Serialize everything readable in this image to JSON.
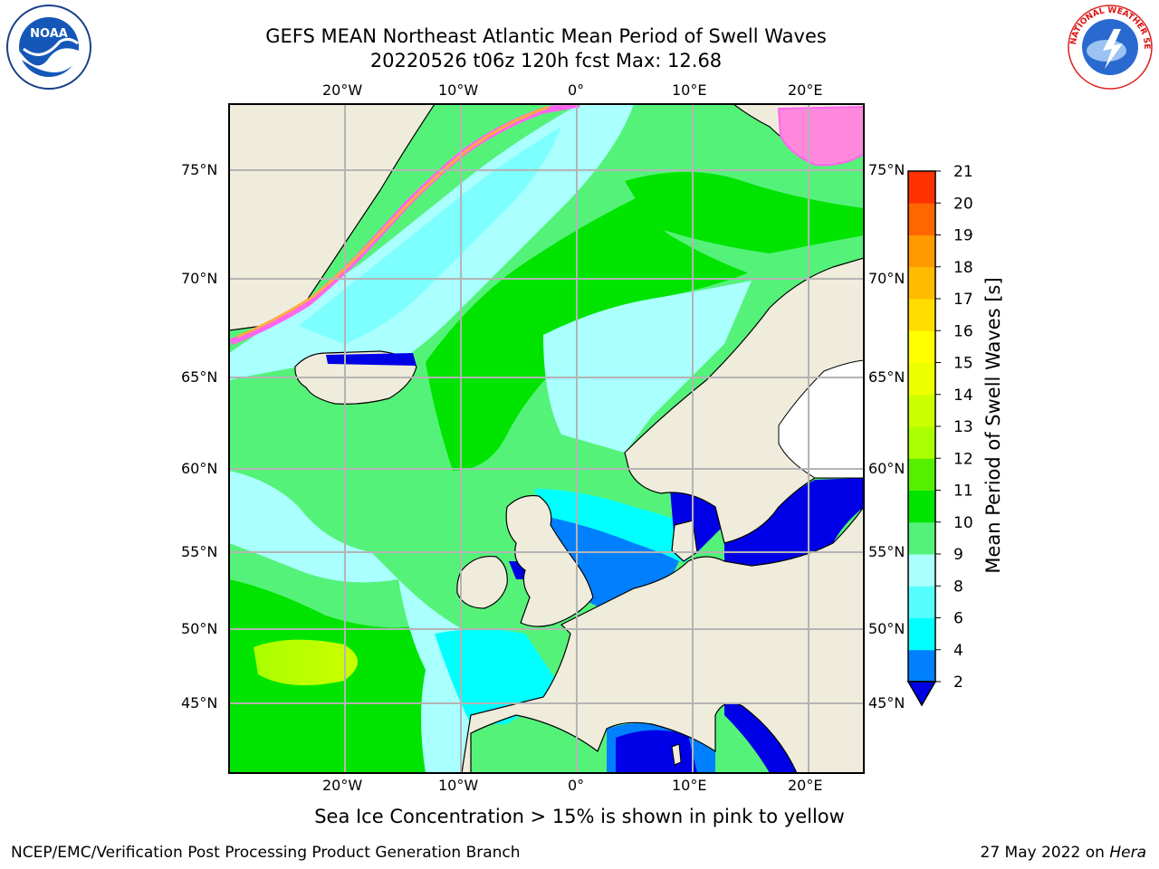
{
  "header": {
    "title_line1": "GEFS MEAN Northeast Atlantic Mean Period of Swell Waves",
    "title_line2": "20220526 t06z 120h fcst   Max: 12.68"
  },
  "map": {
    "lon_labels": [
      "20°W",
      "10°W",
      "0°",
      "10°E",
      "20°E"
    ],
    "lat_labels": [
      "75°N",
      "70°N",
      "65°N",
      "60°N",
      "55°N",
      "50°N",
      "45°N"
    ],
    "colors": {
      "ocean_dark_blue": "#0000e6",
      "ocean_blue": "#0080ff",
      "ocean_cyan": "#00ffff",
      "ocean_light_cyan": "#7dffff",
      "ocean_pale_cyan": "#aaffff",
      "ocean_light_green": "#55f27a",
      "ocean_green": "#00e400",
      "ocean_lime": "#aaff00",
      "land": "#efecdc",
      "ice_pink": "#ff66ee",
      "ice_orange": "#ffaa44",
      "grid": "#b4b4b4"
    }
  },
  "colorbar": {
    "label": "Mean Period of Swell Waves [s]",
    "ticks": [
      "2",
      "4",
      "6",
      "8",
      "9",
      "10",
      "11",
      "12",
      "13",
      "14",
      "15",
      "16",
      "17",
      "18",
      "19",
      "20",
      "21"
    ],
    "colors": [
      "#0080ff",
      "#00ffff",
      "#55ffff",
      "#aaffff",
      "#55f27a",
      "#00e400",
      "#55f000",
      "#aaff00",
      "#ccff00",
      "#eeff00",
      "#ffff00",
      "#ffdd00",
      "#ffbb00",
      "#ff9900",
      "#ff6600",
      "#ff3300"
    ],
    "under_color": "#0000e6"
  },
  "caption": "Sea Ice Concentration > 15% is shown in pink to yellow",
  "footer": {
    "left": "NCEP/EMC/Verification Post Processing Product Generation Branch",
    "right_date": "27 May 2022 on ",
    "right_host": "Hera"
  },
  "logos": {
    "noaa_text": "NOAA",
    "nws_text": "NATIONAL WEATHER SERVICE"
  }
}
